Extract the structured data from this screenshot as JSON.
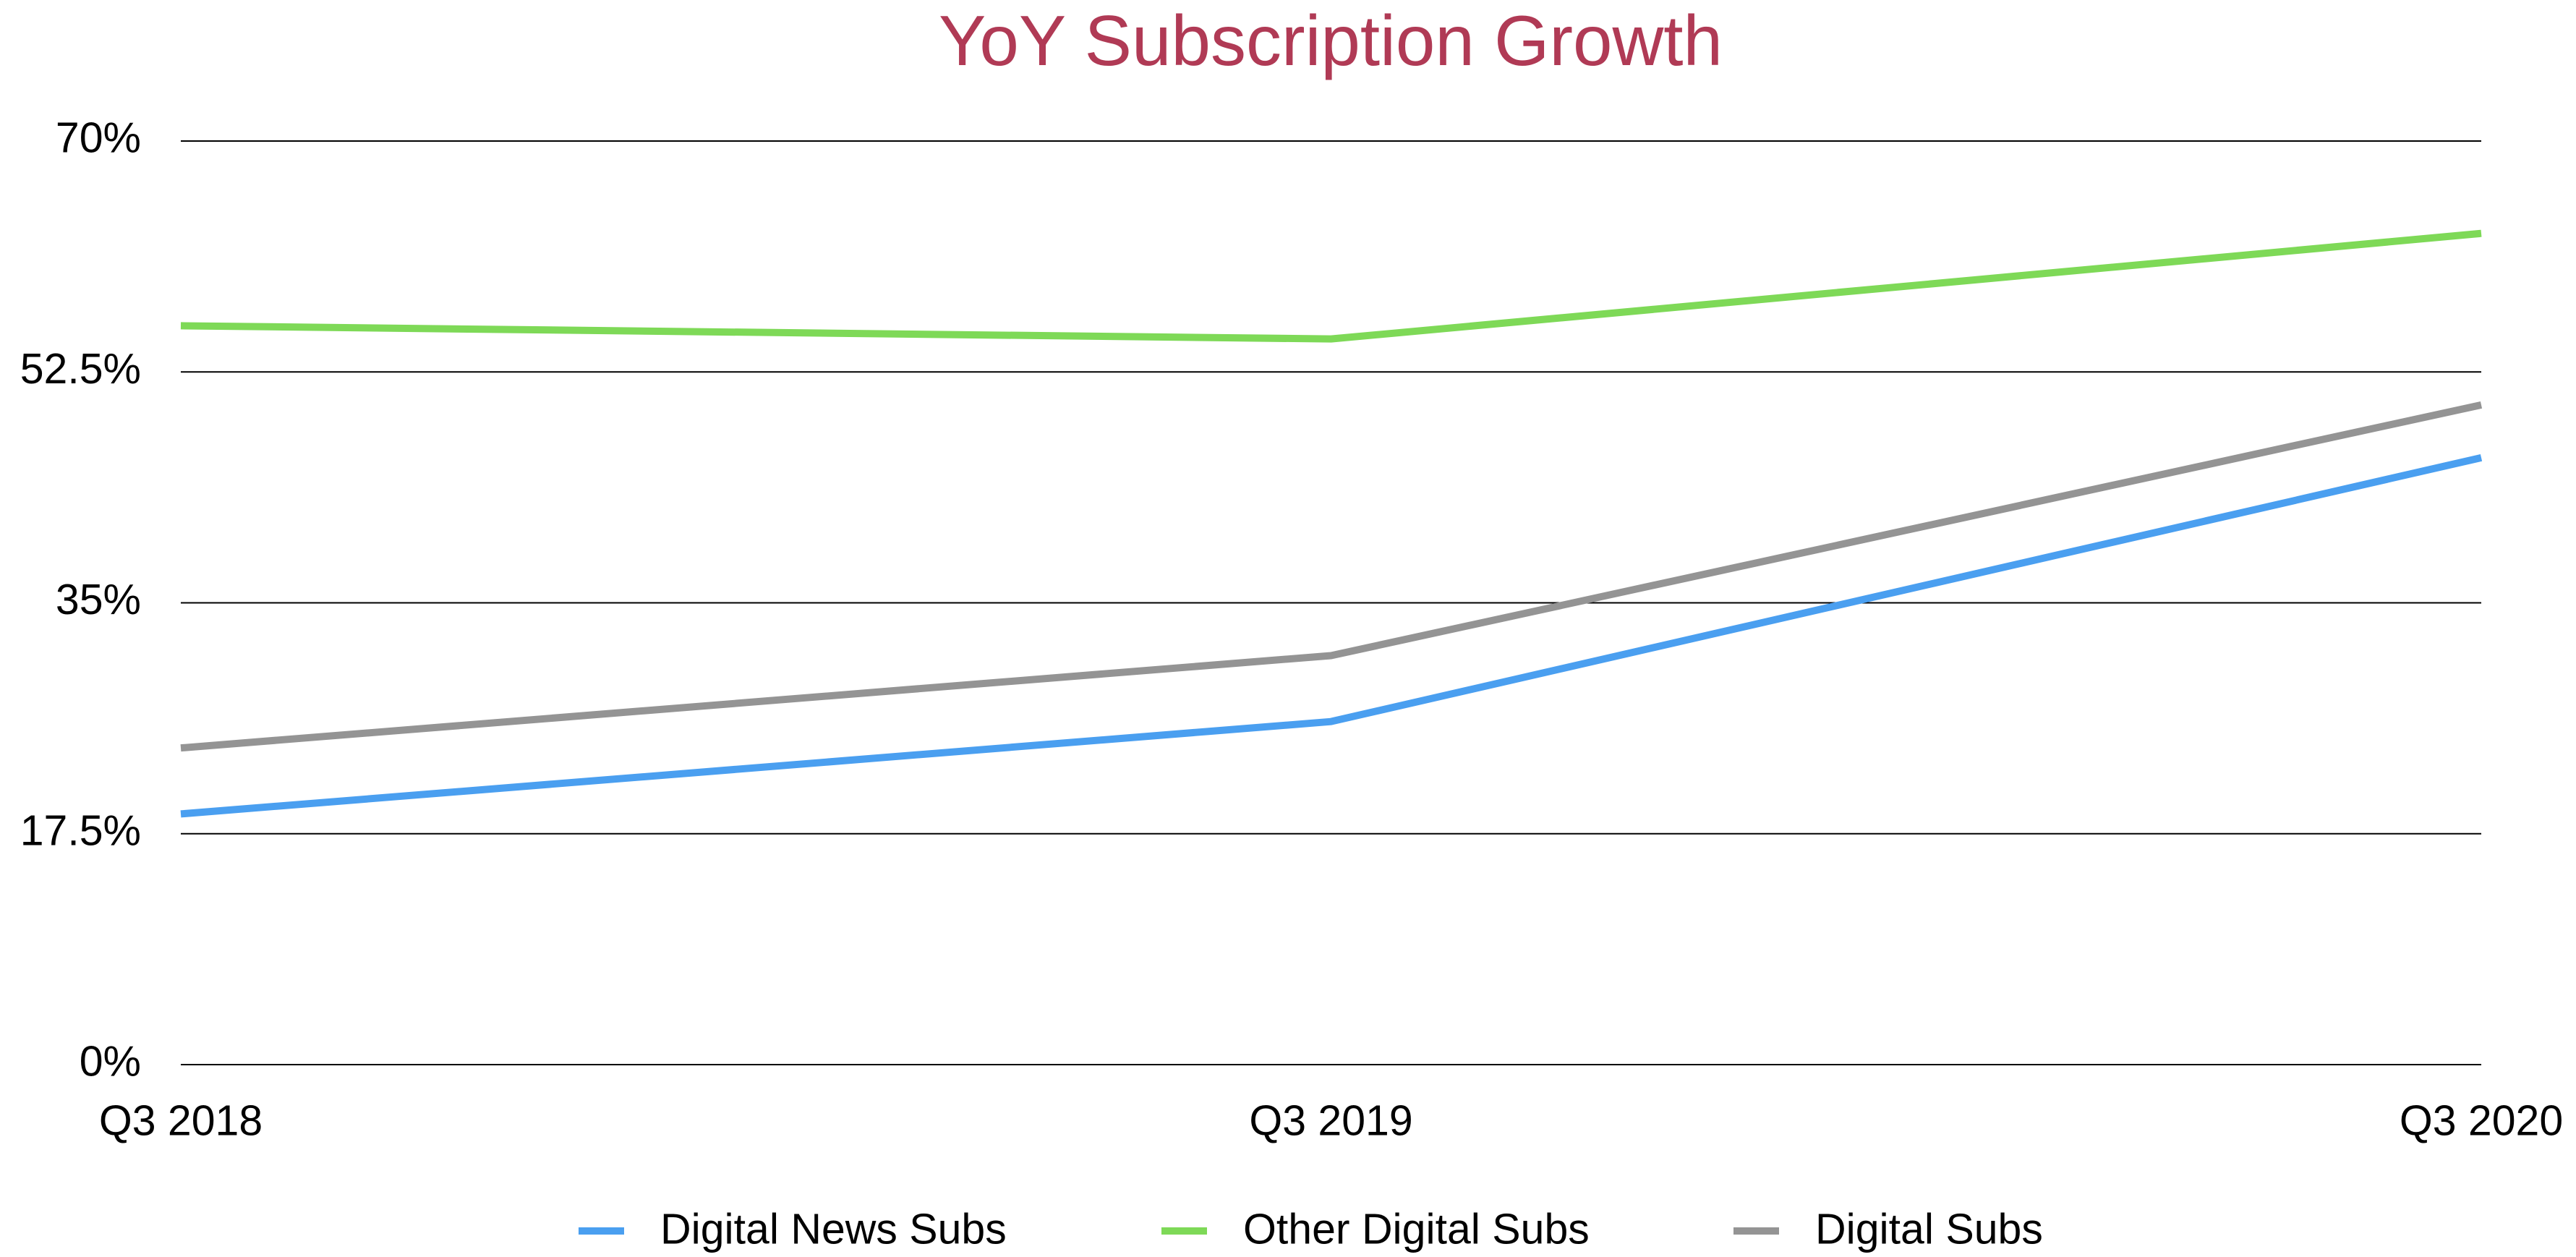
{
  "chart_data": {
    "type": "line",
    "title": "YoY Subscription Growth",
    "categories": [
      "Q3 2018",
      "Q3 2019",
      "Q3 2020"
    ],
    "series": [
      {
        "name": "Digital News Subs",
        "color": "#4a9ff0",
        "values": [
          19,
          26,
          46
        ]
      },
      {
        "name": "Other Digital Subs",
        "color": "#7ed957",
        "values": [
          56,
          55,
          63
        ]
      },
      {
        "name": "Digital Subs",
        "color": "#949494",
        "values": [
          24,
          31,
          50
        ]
      }
    ],
    "ylim": [
      0,
      70
    ],
    "yticks": [
      {
        "value": 0,
        "label": "0%"
      },
      {
        "value": 17.5,
        "label": "17.5%"
      },
      {
        "value": 35,
        "label": "35%"
      },
      {
        "value": 52.5,
        "label": "52.5%"
      },
      {
        "value": 70,
        "label": "70%"
      }
    ],
    "grid": true,
    "legend": "bottom"
  }
}
